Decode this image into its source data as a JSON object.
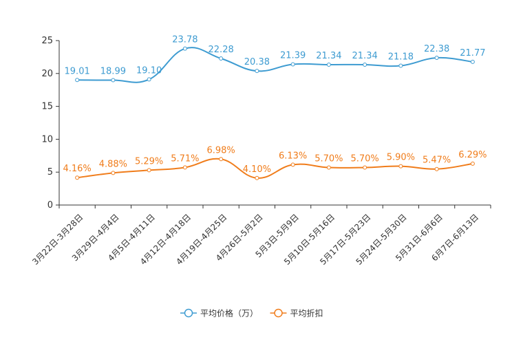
{
  "chart_data": {
    "type": "line",
    "title": "",
    "xlabel": "",
    "ylabel": "",
    "ylim": [
      0,
      25
    ],
    "yticks": [
      0,
      5,
      10,
      15,
      20,
      25
    ],
    "categories": [
      "3月22日-3月28日",
      "3月29日-4月4日",
      "4月5日-4月11日",
      "4月12日-4月18日",
      "4月19日-4月25日",
      "4月26日-5月2日",
      "5月3日-5月9日",
      "5月10日-5月16日",
      "5月17日-5月23日",
      "5月24日-5月30日",
      "5月31日-6月6日",
      "6月7日-6月13日"
    ],
    "series": [
      {
        "name": "平均价格（万）",
        "color": "#3d9bd1",
        "values": [
          19.01,
          18.99,
          19.1,
          23.78,
          22.28,
          20.38,
          21.39,
          21.34,
          21.34,
          21.18,
          22.38,
          21.77
        ],
        "labels": [
          "19.01",
          "18.99",
          "19.10",
          "23.78",
          "22.28",
          "20.38",
          "21.39",
          "21.34",
          "21.34",
          "21.18",
          "22.38",
          "21.77"
        ]
      },
      {
        "name": "平均折扣",
        "color": "#f07c1a",
        "values": [
          4.16,
          4.88,
          5.29,
          5.71,
          6.98,
          4.1,
          6.13,
          5.7,
          5.7,
          5.9,
          5.47,
          6.29
        ],
        "labels": [
          "4.16%",
          "4.88%",
          "5.29%",
          "5.71%",
          "6.98%",
          "4.10%",
          "6.13%",
          "5.70%",
          "5.70%",
          "5.90%",
          "5.47%",
          "6.29%"
        ]
      }
    ],
    "legend_position": "bottom-center",
    "grid": false
  }
}
